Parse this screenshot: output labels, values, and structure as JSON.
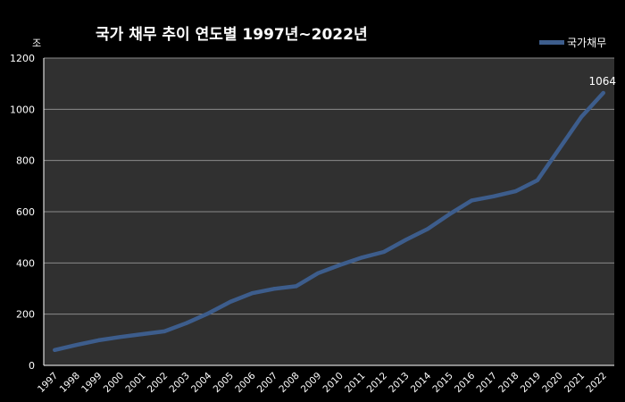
{
  "chart_data": {
    "type": "line",
    "title": "국가 채무 추이 연도별 1997년~2022년",
    "ylabel": "조",
    "xlabel": "",
    "ylim": [
      0,
      1200
    ],
    "yticks": [
      0,
      200,
      400,
      600,
      800,
      1000,
      1200
    ],
    "grid": true,
    "legend_position": "top-right",
    "categories": [
      "1997",
      "1998",
      "1999",
      "2000",
      "2001",
      "2002",
      "2003",
      "2004",
      "2005",
      "2006",
      "2007",
      "2008",
      "2009",
      "2010",
      "2011",
      "2012",
      "2013",
      "2014",
      "2015",
      "2016",
      "2017",
      "2018",
      "2019",
      "2020",
      "2021",
      "2022"
    ],
    "series": [
      {
        "name": "국가채무",
        "color": "#3d5d8c",
        "values": [
          60,
          80,
          98,
          111,
          122,
          133,
          165,
          203,
          248,
          282,
          299,
          309,
          360,
          392,
          421,
          443,
          490,
          533,
          591,
          644,
          660,
          680,
          723,
          847,
          970,
          1064
        ],
        "data_labels": [
          {
            "index": 25,
            "text": "1064"
          }
        ]
      }
    ]
  }
}
